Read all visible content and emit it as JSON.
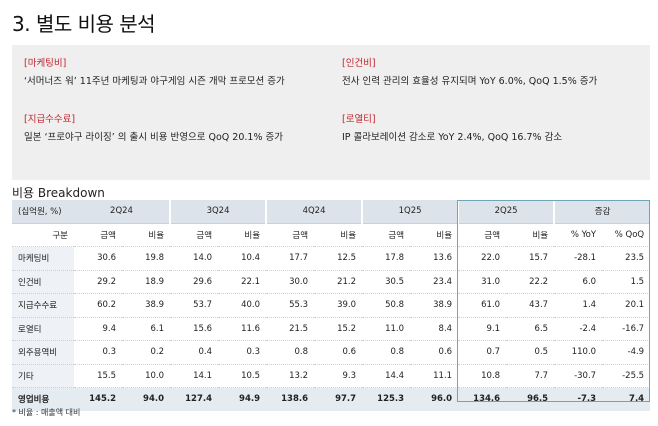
{
  "title": "3. 별도 비용 분석",
  "summary": {
    "marketing": {
      "tag": "[마케팅비]",
      "text": "‘서머너즈 워’ 11주년 마케팅과 야구게임 시즌 개막 프로모션 증가"
    },
    "labor": {
      "tag": "[인건비]",
      "text": "전사 인력 관리의 효율성 유지되며 YoY 6.0%, QoQ 1.5% 증가"
    },
    "fees": {
      "tag": "[지급수수료]",
      "text": "일본 ‘프로야구 라이징’ 의 출시 비용 반영으로 QoQ 20.1% 증가"
    },
    "royalty": {
      "tag": "[로열티]",
      "text": "IP 콜라보레이션 감소로 YoY 2.4%, QoQ 16.7% 감소"
    }
  },
  "breakdown_title": "비용 Breakdown",
  "table": {
    "unit_label": "(십억원, %)",
    "periods": [
      "2Q24",
      "3Q24",
      "4Q24",
      "1Q25",
      "2Q25",
      "증감"
    ],
    "sub_header": {
      "label": "구분",
      "cols": [
        "금액",
        "비율",
        "금액",
        "비율",
        "금액",
        "비율",
        "금액",
        "비율",
        "금액",
        "비율",
        "% YoY",
        "% QoQ"
      ]
    },
    "rows": [
      {
        "label": "마케팅비",
        "values": [
          "30.6",
          "19.8",
          "14.0",
          "10.4",
          "17.7",
          "12.5",
          "17.8",
          "13.6",
          "22.0",
          "15.7",
          "-28.1",
          "23.5"
        ]
      },
      {
        "label": "인건비",
        "values": [
          "29.2",
          "18.9",
          "29.6",
          "22.1",
          "30.0",
          "21.2",
          "30.5",
          "23.4",
          "31.0",
          "22.2",
          "6.0",
          "1.5"
        ]
      },
      {
        "label": "지급수수료",
        "values": [
          "60.2",
          "38.9",
          "53.7",
          "40.0",
          "55.3",
          "39.0",
          "50.8",
          "38.9",
          "61.0",
          "43.7",
          "1.4",
          "20.1"
        ]
      },
      {
        "label": "로열티",
        "values": [
          "9.4",
          "6.1",
          "15.6",
          "11.6",
          "21.5",
          "15.2",
          "11.0",
          "8.4",
          "9.1",
          "6.5",
          "-2.4",
          "-16.7"
        ]
      },
      {
        "label": "외주용역비",
        "values": [
          "0.3",
          "0.2",
          "0.4",
          "0.3",
          "0.8",
          "0.6",
          "0.8",
          "0.6",
          "0.7",
          "0.5",
          "110.0",
          "-4.9"
        ]
      },
      {
        "label": "기타",
        "values": [
          "15.5",
          "10.0",
          "14.1",
          "10.5",
          "13.2",
          "9.3",
          "14.4",
          "11.1",
          "10.8",
          "7.7",
          "-30.7",
          "-25.5"
        ]
      }
    ],
    "total": {
      "label": "영업비용",
      "values": [
        "145.2",
        "94.0",
        "127.4",
        "94.9",
        "138.6",
        "97.7",
        "125.3",
        "96.0",
        "134.6",
        "96.5",
        "-7.3",
        "7.4"
      ]
    }
  },
  "footnote": "* 비율 : 매출액 대비"
}
